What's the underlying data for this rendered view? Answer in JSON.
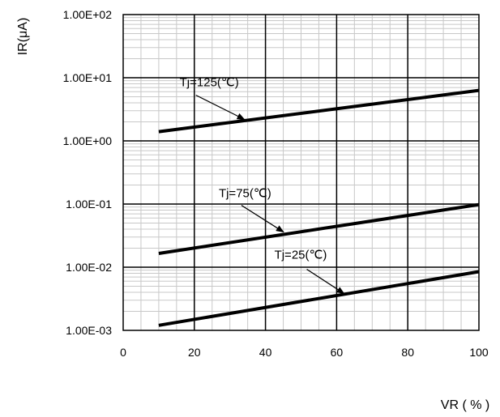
{
  "chart_data": {
    "type": "line",
    "title": "",
    "xlabel": "VR ( % )",
    "ylabel": "IR(μA)",
    "xlim": [
      0,
      100
    ],
    "ylim": [
      0.001,
      100
    ],
    "yscale": "log",
    "grid": true,
    "x_ticks": [
      "0",
      "20",
      "40",
      "60",
      "80",
      "100"
    ],
    "y_ticks": [
      "1.00E-03",
      "1.00E-02",
      "1.00E-01",
      "1.00E+00",
      "1.00E+01",
      "1.00E+02"
    ],
    "series": [
      {
        "name": "Tj=125(℃)",
        "x": [
          10,
          100
        ],
        "y": [
          1.4,
          6.3
        ]
      },
      {
        "name": "Tj=75(℃)",
        "x": [
          10,
          100
        ],
        "y": [
          0.0165,
          0.098
        ]
      },
      {
        "name": "Tj=25(℃)",
        "x": [
          10,
          100
        ],
        "y": [
          0.0012,
          0.0085
        ]
      }
    ],
    "annotations": [
      {
        "text": "Tj=125(℃)",
        "points_to": {
          "x": 35,
          "y": 2.0
        }
      },
      {
        "text": "Tj=75(℃)",
        "points_to": {
          "x": 46,
          "y": 0.033
        }
      },
      {
        "text": "Tj=25(℃)",
        "points_to": {
          "x": 63,
          "y": 0.0035
        }
      }
    ]
  }
}
